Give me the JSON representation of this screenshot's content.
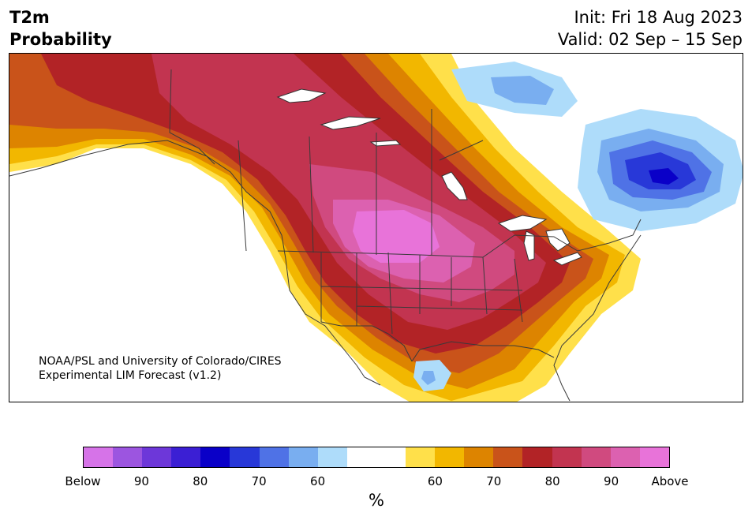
{
  "header": {
    "title_line1": "T2m",
    "title_line2": "Probability",
    "init_text": "Init: Fri 18 Aug 2023",
    "valid_text": "Valid: 02 Sep – 15 Sep"
  },
  "credit": {
    "line1": "NOAA/PSL and University of Colorado/CIRES",
    "line2": "Experimental LIM Forecast (v1.2)"
  },
  "colorbar": {
    "unit": "%",
    "ticks": [
      "Below",
      "90",
      "80",
      "70",
      "60",
      "60",
      "70",
      "80",
      "90",
      "Above"
    ],
    "colors": [
      "#d673e8",
      "#9c55e0",
      "#6d37d9",
      "#3b1fd4",
      "#0a00c8",
      "#2838d8",
      "#4f72e6",
      "#79aef0",
      "#aedcfa",
      "#ffffff",
      "#ffffff",
      "#ffe04a",
      "#f2b700",
      "#dd8400",
      "#c9531a",
      "#b22326",
      "#c23450",
      "#d04a7f",
      "#dc61b0",
      "#e873d9"
    ]
  },
  "map": {
    "region": "North America",
    "warm_color_core": "#e873d9",
    "cold_color_core": "#0a00c8"
  }
}
